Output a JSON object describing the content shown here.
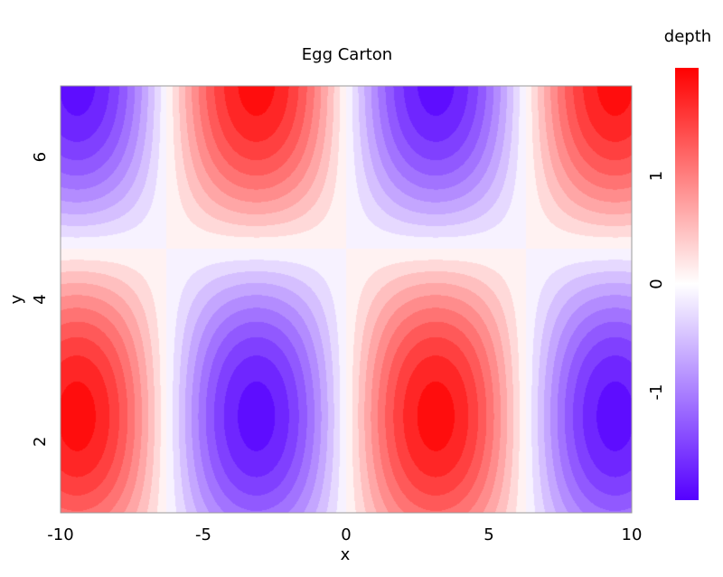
{
  "chart_data": {
    "type": "heatmap",
    "title": "Egg Carton",
    "xlabel": "x",
    "ylabel": "y",
    "xlim": [
      -10,
      10
    ],
    "ylim": [
      1.0,
      7.0
    ],
    "x_ticks": [
      -10,
      -5,
      0,
      5,
      10
    ],
    "y_ticks": [
      2,
      4,
      6
    ],
    "colorbar": {
      "label": "depth",
      "range": [
        -2,
        2
      ],
      "ticks": [
        -1,
        0,
        1
      ],
      "colors": {
        "low": "#5500ff",
        "mid": "#ffffff",
        "high": "#ff0000"
      }
    },
    "function": "sin(x/2) * sin(2y/3)",
    "contour_levels": [
      -1.9,
      -1.7,
      -1.5,
      -1.3,
      -1.1,
      -0.9,
      -0.7,
      -0.5,
      -0.3,
      -0.1,
      0.1,
      0.3,
      0.5,
      0.7,
      0.9,
      1.1,
      1.3,
      1.5,
      1.7,
      1.9
    ],
    "amplitude_scale": 1.9,
    "grid": false,
    "legend": "right"
  }
}
